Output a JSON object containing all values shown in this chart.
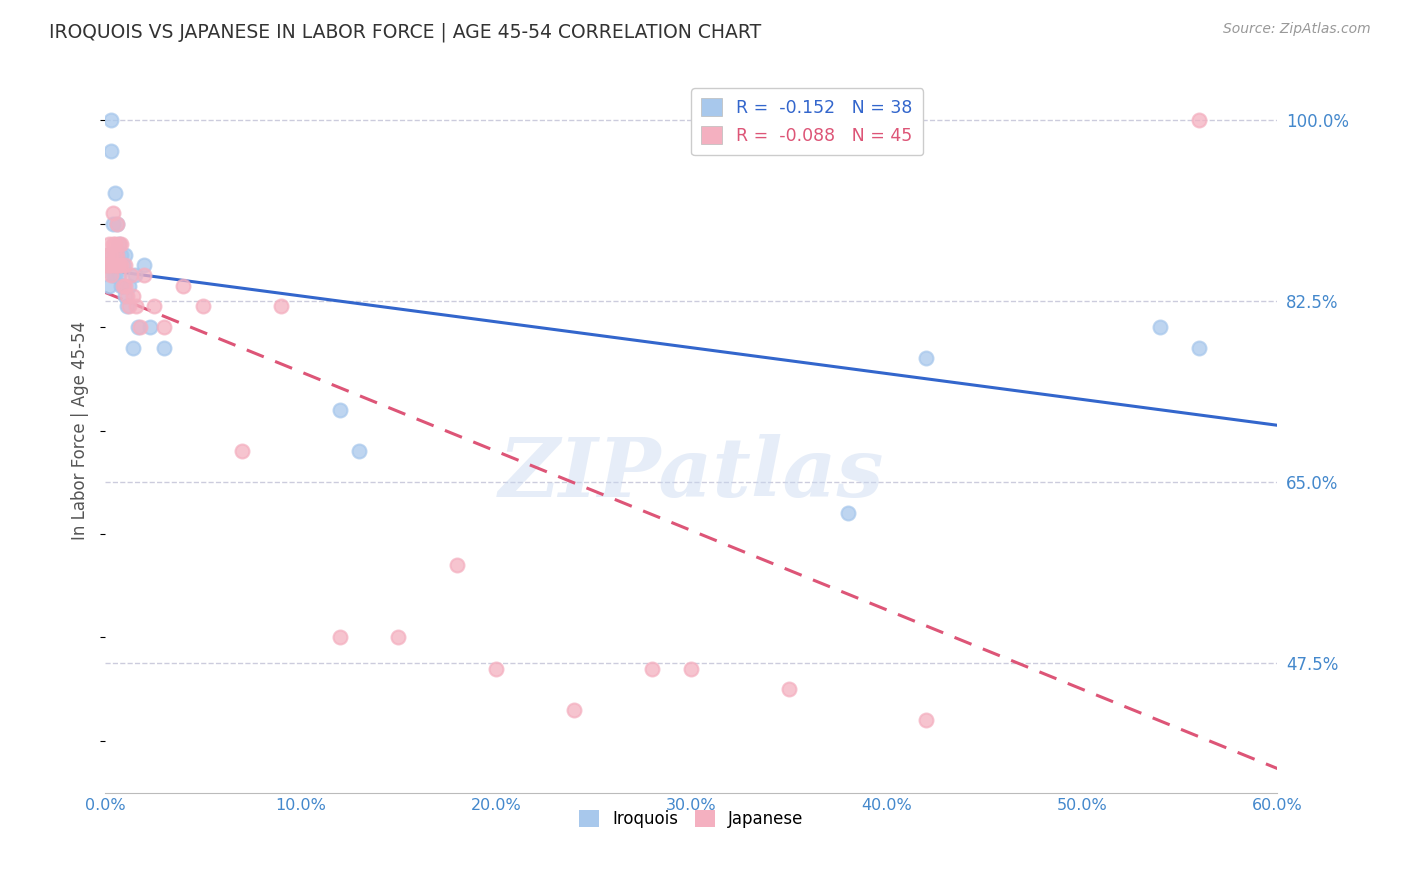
{
  "title": "IROQUOIS VS JAPANESE IN LABOR FORCE | AGE 45-54 CORRELATION CHART",
  "source": "Source: ZipAtlas.com",
  "ylabel": "In Labor Force | Age 45-54",
  "xlim": [
    0.0,
    0.6
  ],
  "ylim": [
    0.35,
    1.05
  ],
  "yticks_right": [
    1.0,
    0.825,
    0.65,
    0.475
  ],
  "legend_blue_r": "-0.152",
  "legend_blue_n": "38",
  "legend_pink_r": "-0.088",
  "legend_pink_n": "45",
  "blue_scatter_color": "#A8C8EC",
  "pink_scatter_color": "#F4B0C0",
  "blue_line_color": "#3366CC",
  "pink_line_color": "#DD5577",
  "title_color": "#333333",
  "axis_label_color": "#555555",
  "tick_color": "#4488CC",
  "grid_color": "#CCCCDD",
  "watermark": "ZIPatlas",
  "iroquois_x": [
    0.001,
    0.002,
    0.002,
    0.003,
    0.003,
    0.003,
    0.004,
    0.004,
    0.005,
    0.005,
    0.005,
    0.005,
    0.006,
    0.006,
    0.006,
    0.007,
    0.007,
    0.007,
    0.008,
    0.008,
    0.009,
    0.009,
    0.01,
    0.01,
    0.011,
    0.012,
    0.014,
    0.015,
    0.017,
    0.02,
    0.023,
    0.03,
    0.12,
    0.13,
    0.38,
    0.42,
    0.54,
    0.56
  ],
  "iroquois_y": [
    0.86,
    0.87,
    0.84,
    1.0,
    0.97,
    0.86,
    0.9,
    0.85,
    0.86,
    0.93,
    0.87,
    0.85,
    0.9,
    0.87,
    0.86,
    0.88,
    0.86,
    0.85,
    0.87,
    0.84,
    0.86,
    0.84,
    0.87,
    0.83,
    0.82,
    0.84,
    0.78,
    0.85,
    0.8,
    0.86,
    0.8,
    0.78,
    0.72,
    0.68,
    0.62,
    0.77,
    0.8,
    0.78
  ],
  "japanese_x": [
    0.001,
    0.001,
    0.002,
    0.002,
    0.003,
    0.003,
    0.003,
    0.004,
    0.004,
    0.005,
    0.005,
    0.005,
    0.006,
    0.006,
    0.006,
    0.007,
    0.007,
    0.008,
    0.008,
    0.009,
    0.01,
    0.01,
    0.011,
    0.012,
    0.013,
    0.014,
    0.016,
    0.018,
    0.02,
    0.025,
    0.03,
    0.04,
    0.05,
    0.07,
    0.09,
    0.12,
    0.15,
    0.18,
    0.2,
    0.24,
    0.28,
    0.3,
    0.35,
    0.42,
    0.56
  ],
  "japanese_y": [
    0.86,
    0.87,
    0.88,
    0.86,
    0.87,
    0.86,
    0.85,
    0.91,
    0.88,
    0.88,
    0.87,
    0.86,
    0.9,
    0.87,
    0.86,
    0.88,
    0.86,
    0.88,
    0.86,
    0.84,
    0.86,
    0.84,
    0.83,
    0.82,
    0.85,
    0.83,
    0.82,
    0.8,
    0.85,
    0.82,
    0.8,
    0.84,
    0.82,
    0.68,
    0.82,
    0.5,
    0.5,
    0.57,
    0.47,
    0.43,
    0.47,
    0.47,
    0.45,
    0.42,
    1.0
  ]
}
